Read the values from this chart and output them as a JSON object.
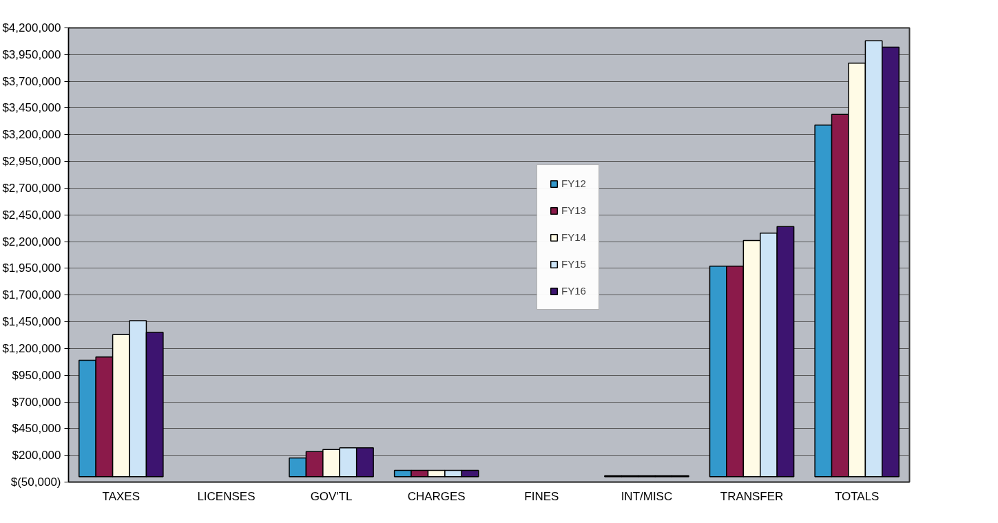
{
  "chart_data": {
    "type": "bar",
    "categories": [
      "TAXES",
      "LICENSES",
      "GOV'TL",
      "CHARGES",
      "FINES",
      "INT/MISC",
      "TRANSFER",
      "TOTALS"
    ],
    "series": [
      {
        "name": "FY12",
        "color": "#3399cc",
        "values": [
          1090000,
          null,
          175000,
          60000,
          null,
          10000,
          1970000,
          3290000
        ]
      },
      {
        "name": "FY13",
        "color": "#8b1a4a",
        "values": [
          1120000,
          null,
          235000,
          60000,
          null,
          10000,
          1970000,
          3390000
        ]
      },
      {
        "name": "FY14",
        "color": "#fffbe6",
        "values": [
          1330000,
          null,
          255000,
          60000,
          null,
          10000,
          2210000,
          3870000
        ]
      },
      {
        "name": "FY15",
        "color": "#cce4f7",
        "values": [
          1460000,
          null,
          270000,
          60000,
          null,
          10000,
          2280000,
          4080000
        ]
      },
      {
        "name": "FY16",
        "color": "#3d1470",
        "values": [
          1350000,
          null,
          270000,
          60000,
          null,
          10000,
          2340000,
          4020000
        ]
      }
    ],
    "ylim": [
      -50000,
      4200000
    ],
    "yticks": [
      {
        "value": -50000,
        "label": "$(50,000)"
      },
      {
        "value": 200000,
        "label": "$200,000"
      },
      {
        "value": 450000,
        "label": "$450,000"
      },
      {
        "value": 700000,
        "label": "$700,000"
      },
      {
        "value": 950000,
        "label": "$950,000"
      },
      {
        "value": 1200000,
        "label": "$1,200,000"
      },
      {
        "value": 1450000,
        "label": "$1,450,000"
      },
      {
        "value": 1700000,
        "label": "$1,700,000"
      },
      {
        "value": 1950000,
        "label": "$1,950,000"
      },
      {
        "value": 2200000,
        "label": "$2,200,000"
      },
      {
        "value": 2450000,
        "label": "$2,450,000"
      },
      {
        "value": 2700000,
        "label": "$2,700,000"
      },
      {
        "value": 2950000,
        "label": "$2,950,000"
      },
      {
        "value": 3200000,
        "label": "$3,200,000"
      },
      {
        "value": 3450000,
        "label": "$3,450,000"
      },
      {
        "value": 3700000,
        "label": "$3,700,000"
      },
      {
        "value": 3950000,
        "label": "$3,950,000"
      },
      {
        "value": 4200000,
        "label": "$4,200,000"
      }
    ],
    "grid": "y",
    "legend": "center"
  }
}
